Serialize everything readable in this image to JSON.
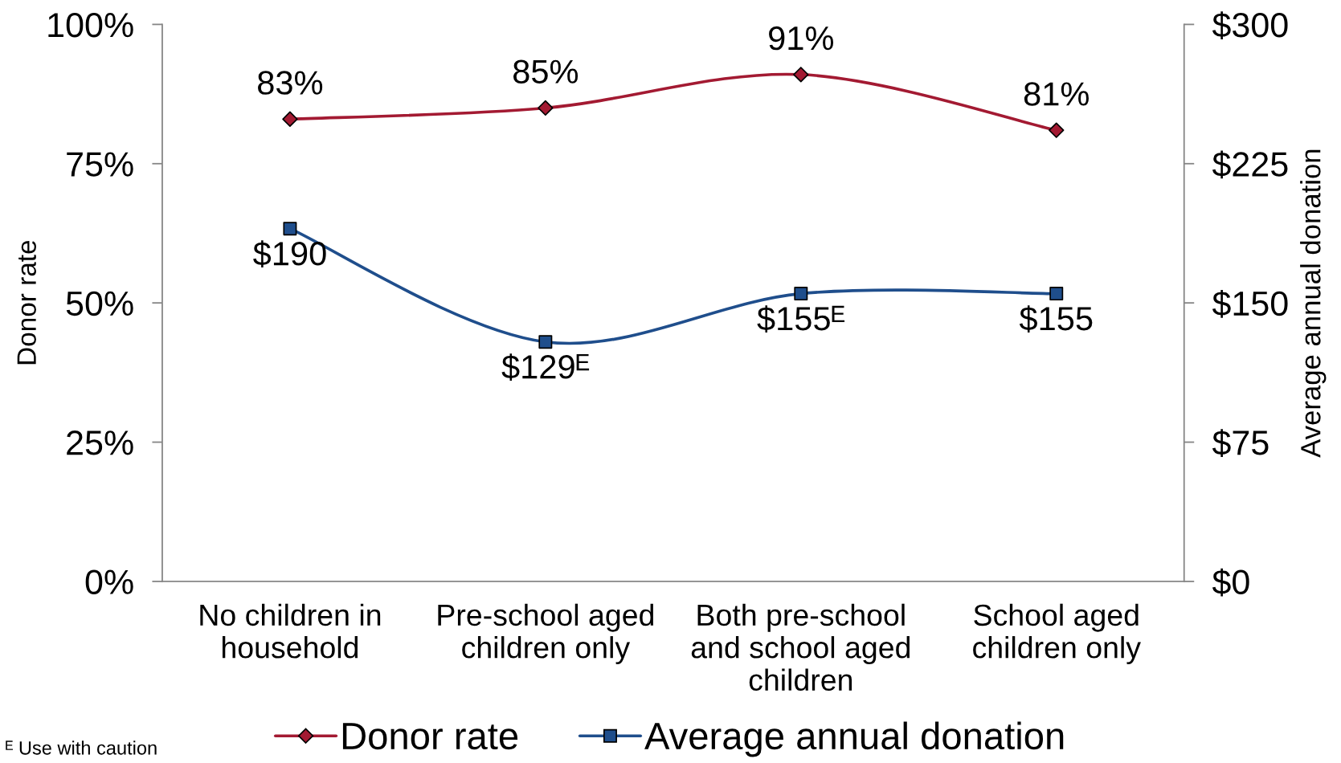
{
  "chart_data": {
    "type": "line",
    "categories": [
      "No children in\nhousehold",
      "Pre-school aged\nchildren only",
      "Both pre-school\nand school aged\nchildren",
      "School aged\nchildren only"
    ],
    "series": [
      {
        "name": "Donor rate",
        "color": "#a31a32",
        "marker": "diamond",
        "values": [
          83,
          85,
          91,
          81
        ],
        "value_labels": [
          "83%",
          "85%",
          "91%",
          "81%"
        ]
      },
      {
        "name": "Average annual donation",
        "color": "#1f4e8c",
        "marker": "square",
        "axis": "y2",
        "values": [
          190,
          129,
          155,
          155
        ],
        "value_labels": [
          "$190",
          "$129ᴱ",
          "$155ᴱ",
          "$155"
        ]
      }
    ],
    "ylabel": "Donor rate",
    "y2label": "Average annual donation",
    "ylim": [
      0,
      100
    ],
    "yticks": [
      {
        "value": 0,
        "label": "0%"
      },
      {
        "value": 25,
        "label": "25%"
      },
      {
        "value": 50,
        "label": "50%"
      },
      {
        "value": 75,
        "label": "75%"
      },
      {
        "value": 100,
        "label": "100%"
      }
    ],
    "y2lim": [
      0,
      300
    ],
    "y2ticks": [
      {
        "value": 0,
        "label": "$0"
      },
      {
        "value": 75,
        "label": "$75"
      },
      {
        "value": 150,
        "label": "$150"
      },
      {
        "value": 225,
        "label": "$225"
      },
      {
        "value": 300,
        "label": "$300"
      }
    ],
    "legend": "bottom",
    "grid": false,
    "line_style": "solid",
    "annotations": [
      "ᴱ Use with caution"
    ]
  }
}
